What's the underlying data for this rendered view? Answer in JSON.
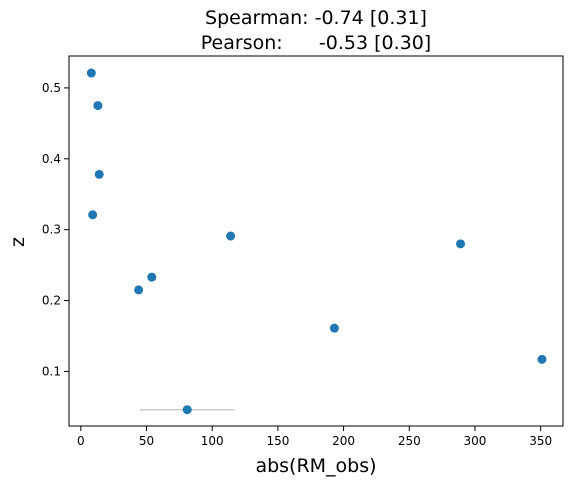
{
  "chart_data": {
    "type": "scatter",
    "title_lines": [
      "Spearman: -0.74 [0.31]",
      "Pearson:      -0.53 [0.30]"
    ],
    "xlabel": "abs(RM_obs)",
    "ylabel": "z",
    "xlim": [
      -9,
      367
    ],
    "ylim": [
      0.023,
      0.545
    ],
    "xticks": [
      0,
      50,
      100,
      150,
      200,
      250,
      300,
      350
    ],
    "yticks": [
      0.1,
      0.2,
      0.3,
      0.4,
      0.5
    ],
    "grid": false,
    "points": [
      {
        "x": 8,
        "y": 0.521
      },
      {
        "x": 13,
        "y": 0.475
      },
      {
        "x": 14,
        "y": 0.378
      },
      {
        "x": 9,
        "y": 0.321
      },
      {
        "x": 114,
        "y": 0.291
      },
      {
        "x": 54,
        "y": 0.233
      },
      {
        "x": 44,
        "y": 0.215
      },
      {
        "x": 289,
        "y": 0.28
      },
      {
        "x": 193,
        "y": 0.161
      },
      {
        "x": 351,
        "y": 0.117
      },
      {
        "x": 81,
        "y": 0.046,
        "xerr": [
          45,
          117
        ]
      }
    ],
    "colors": {
      "marker": "#1f77b4",
      "errorbar": "#cccccc",
      "axes": "#000000"
    }
  }
}
